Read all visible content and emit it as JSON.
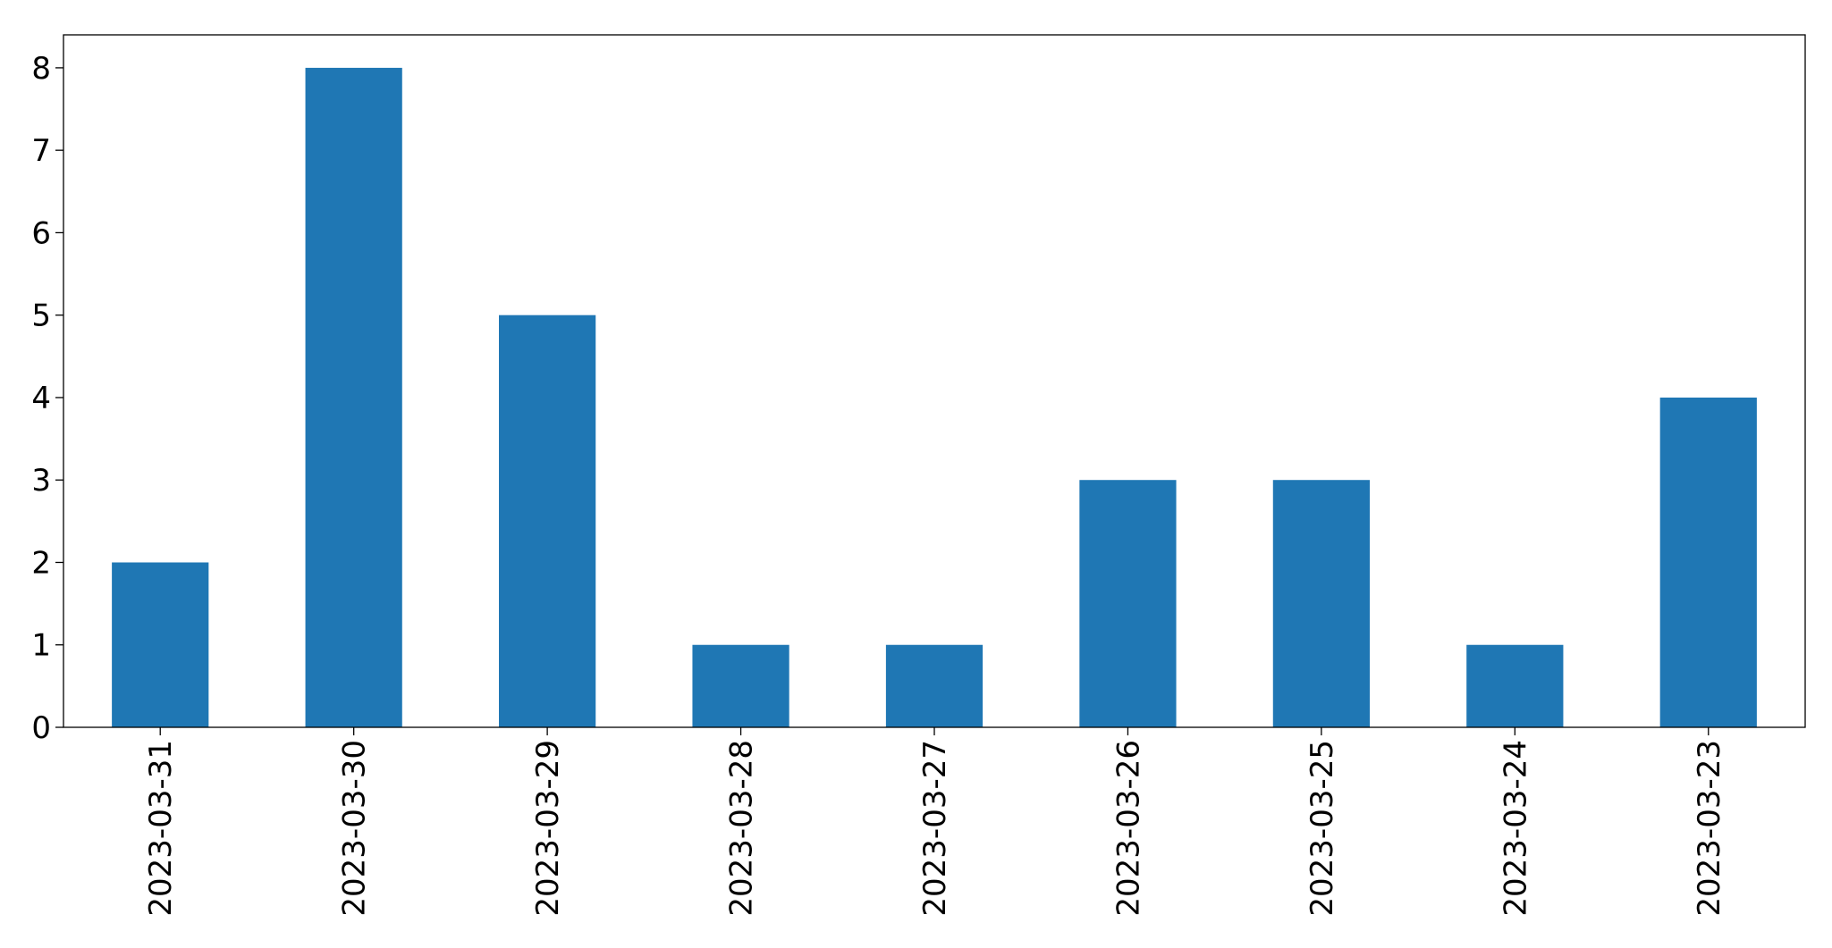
{
  "chart_data": {
    "type": "bar",
    "categories": [
      "2023-03-31",
      "2023-03-30",
      "2023-03-29",
      "2023-03-28",
      "2023-03-27",
      "2023-03-26",
      "2023-03-25",
      "2023-03-24",
      "2023-03-23"
    ],
    "values": [
      2,
      8,
      5,
      1,
      1,
      3,
      3,
      1,
      4
    ],
    "color": "#1f77b4",
    "ylim": [
      0,
      8.4
    ],
    "yticks": [
      0,
      1,
      2,
      3,
      4,
      5,
      6,
      7,
      8
    ],
    "grid": false
  }
}
